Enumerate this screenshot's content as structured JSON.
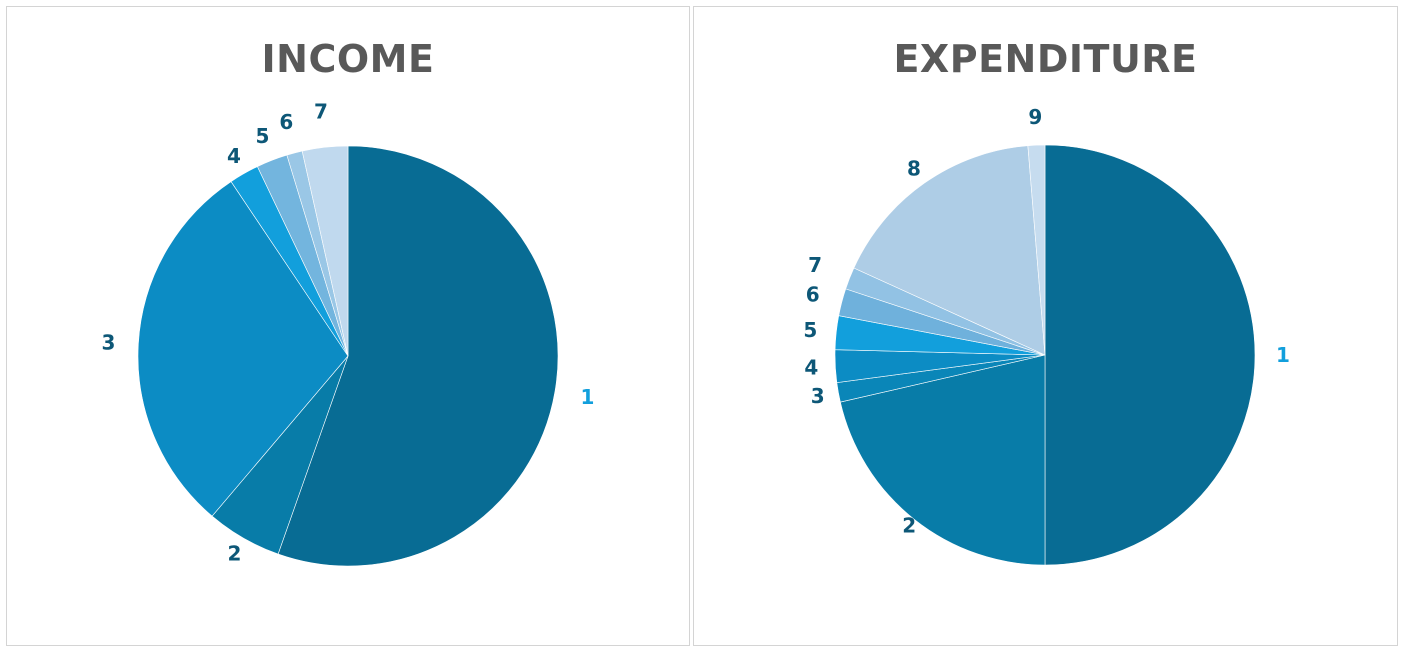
{
  "chart_data": [
    {
      "type": "pie",
      "title": "INCOME",
      "categories": [
        "1",
        "2",
        "3",
        "4",
        "5",
        "6",
        "7"
      ],
      "values": [
        55.4,
        5.8,
        29.4,
        2.3,
        2.4,
        1.2,
        3.5
      ],
      "colors": [
        "#086c94",
        "#087ca8",
        "#0c8cc4",
        "#129fdc",
        "#73b5de",
        "#9ac7e6",
        "#c0d9ee"
      ],
      "label_colors": [
        "#129fdc",
        "#0d5777",
        "#0d5777",
        "#0d5777",
        "#0d5777",
        "#0d5777",
        "#0d5777"
      ]
    },
    {
      "type": "pie",
      "title": "EXPENDITURE",
      "categories": [
        "1",
        "2",
        "3",
        "4",
        "5",
        "6",
        "7",
        "8",
        "9"
      ],
      "values": [
        50.0,
        21.4,
        1.5,
        2.5,
        2.6,
        2.1,
        1.7,
        16.9,
        1.3
      ],
      "colors": [
        "#086c94",
        "#087ca8",
        "#0a86b8",
        "#0c8cc4",
        "#129fdc",
        "#6fb1dc",
        "#92c2e4",
        "#aecde6",
        "#c6dcef"
      ],
      "label_colors": [
        "#129fdc",
        "#0d5777",
        "#0d5777",
        "#0d5777",
        "#0d5777",
        "#0d5777",
        "#0d5777",
        "#0d5777",
        "#0d5777"
      ]
    }
  ]
}
